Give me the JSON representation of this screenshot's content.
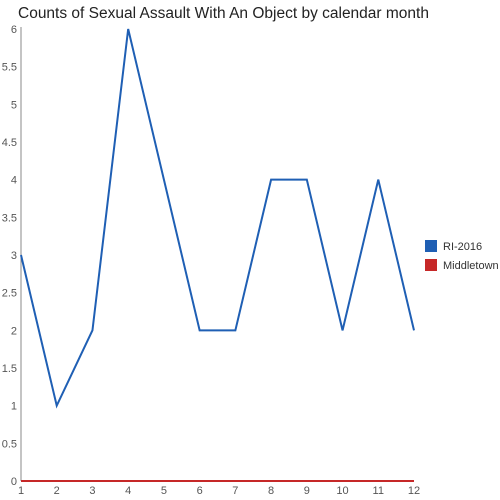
{
  "chart_data": {
    "type": "line",
    "title": "Counts of Sexual Assault With An Object by calendar month",
    "xlabel": "",
    "ylabel": "",
    "x": [
      1,
      2,
      3,
      4,
      5,
      6,
      7,
      8,
      9,
      10,
      11,
      12
    ],
    "xlim": [
      1,
      12
    ],
    "ylim": [
      0,
      6
    ],
    "y_ticks": [
      "0",
      "0.5",
      "1",
      "1.5",
      "2",
      "2.5",
      "3",
      "3.5",
      "4",
      "4.5",
      "5",
      "5.5",
      "6"
    ],
    "x_ticks": [
      "1",
      "2",
      "3",
      "4",
      "5",
      "6",
      "7",
      "8",
      "9",
      "10",
      "11",
      "12"
    ],
    "grid": false,
    "legend_position": "right",
    "series": [
      {
        "name": "RI-2016",
        "color": "#1f5fb4",
        "values": [
          3,
          1,
          2,
          6,
          4,
          2,
          2,
          4,
          4,
          2,
          4,
          2
        ]
      },
      {
        "name": "Middletown",
        "color": "#c62828",
        "values": [
          0,
          0,
          0,
          0,
          0,
          0,
          0,
          0,
          0,
          0,
          0,
          0
        ]
      }
    ]
  }
}
